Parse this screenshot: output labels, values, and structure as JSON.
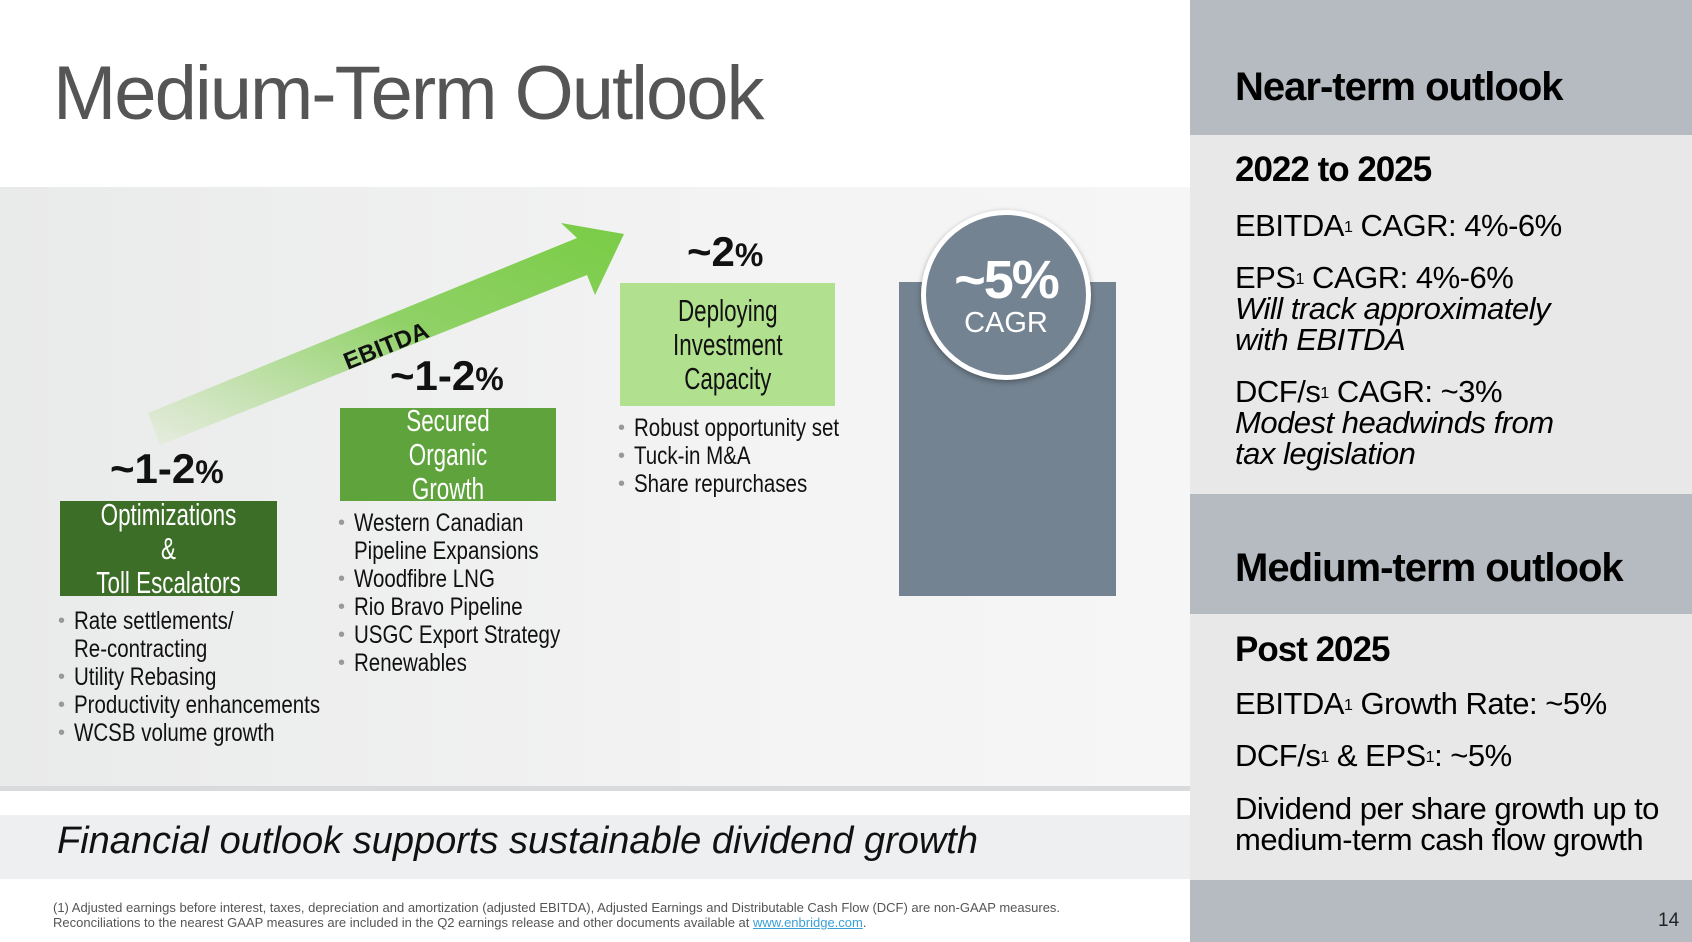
{
  "title": "Medium-Term Outlook",
  "steps": [
    {
      "pct": "~1-2",
      "pct_suffix": "%",
      "box_lines": [
        "Optimizations &",
        "Toll Escalators"
      ],
      "bullets": [
        "Rate settlements/",
        "Re-contracting",
        "Utility Rebasing",
        "Productivity enhancements",
        "WCSB volume growth"
      ]
    },
    {
      "pct": "~1-2",
      "pct_suffix": "%",
      "box_lines": [
        "Secured",
        "Organic Growth"
      ],
      "bullets": [
        "Western Canadian",
        "Pipeline Expansions",
        "Woodfibre LNG",
        "Rio Bravo Pipeline",
        "USGC Export Strategy",
        "Renewables"
      ]
    },
    {
      "pct": "~2",
      "pct_suffix": "%",
      "box_lines": [
        "Deploying",
        "Investment",
        "Capacity"
      ],
      "bullets": [
        "Robust opportunity set",
        "Tuck-in M&A",
        "Share repurchases"
      ]
    }
  ],
  "arrow_label": "EBITDA",
  "total": {
    "value": "~5%",
    "label": "CAGR"
  },
  "banner": "Financial outlook supports sustainable dividend growth",
  "footnote": {
    "line1": "(1) Adjusted earnings before interest, taxes, depreciation and amortization (adjusted EBITDA), Adjusted Earnings and Distributable Cash Flow (DCF) are non-GAAP measures.",
    "line2_prefix": "Reconciliations to the nearest GAAP measures are included in the Q2 earnings release and other documents available at ",
    "link": "www.enbridge.com",
    "line2_suffix": "."
  },
  "near_term": {
    "heading": "Near-term outlook",
    "period": "2022 to 2025",
    "ebitda_label": "EBITDA",
    "ebitda_value": " CAGR: 4%-6%",
    "eps_label": "EPS",
    "eps_value": " CAGR: 4%-6%",
    "eps_note_1": "Will track approximately",
    "eps_note_2": "with EBITDA",
    "dcf_label": "DCF/s",
    "dcf_value": " CAGR: ~3%",
    "dcf_note_1": "Modest headwinds from",
    "dcf_note_2": "tax legislation"
  },
  "medium_term": {
    "heading": "Medium-term outlook",
    "period": "Post 2025",
    "ebitda_label": "EBITDA",
    "ebitda_value": " Growth Rate: ~5%",
    "dcf_eps_a": "DCF/s",
    "dcf_eps_mid": " & EPS",
    "dcf_eps_value": ": ~5%",
    "dividend_1": "Dividend per share growth up to",
    "dividend_2": "medium-term cash flow growth"
  },
  "footnote_marker": "1",
  "page_number": "14",
  "colors": {
    "dark_green": "#3c6e27",
    "mid_green": "#5ea33b",
    "light_green": "#b1e08f",
    "slate": "#748391",
    "sidebar_header": "#b5bbc1"
  }
}
